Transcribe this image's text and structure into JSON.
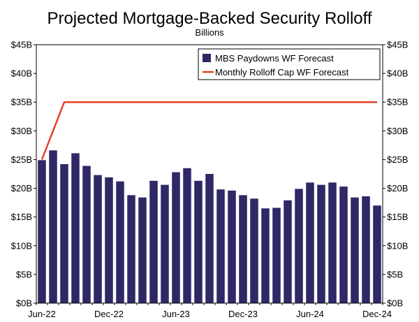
{
  "chart_data": {
    "type": "bar",
    "title": "Projected Mortgage-Backed Security Rolloff",
    "subtitle": "Billions",
    "xlabel": "",
    "ylabel": "",
    "ylim": [
      0,
      45
    ],
    "y_ticks": [
      "$0B",
      "$5B",
      "$10B",
      "$15B",
      "$20B",
      "$25B",
      "$30B",
      "$35B",
      "$40B",
      "$45B"
    ],
    "y_tick_values": [
      0,
      5,
      10,
      15,
      20,
      25,
      30,
      35,
      40,
      45
    ],
    "secondary_axis": "right, same scale",
    "grid": false,
    "legend_position": "top-right",
    "categories": [
      "Jun-22",
      "Jul-22",
      "Aug-22",
      "Sep-22",
      "Oct-22",
      "Nov-22",
      "Dec-22",
      "Jan-23",
      "Feb-23",
      "Mar-23",
      "Apr-23",
      "May-23",
      "Jun-23",
      "Jul-23",
      "Aug-23",
      "Sep-23",
      "Oct-23",
      "Nov-23",
      "Dec-23",
      "Jan-24",
      "Feb-24",
      "Mar-24",
      "Apr-24",
      "May-24",
      "Jun-24",
      "Jul-24",
      "Aug-24",
      "Sep-24",
      "Oct-24",
      "Nov-24",
      "Dec-24"
    ],
    "x_tick_labels": [
      {
        "index": 0,
        "label": "Jun-22"
      },
      {
        "index": 6,
        "label": "Dec-22"
      },
      {
        "index": 12,
        "label": "Jun-23"
      },
      {
        "index": 18,
        "label": "Dec-23"
      },
      {
        "index": 24,
        "label": "Jun-24"
      },
      {
        "index": 30,
        "label": "Dec-24"
      }
    ],
    "series": [
      {
        "name": "MBS Paydowns WF Forecast",
        "type": "bar",
        "color": "#2e2866",
        "values": [
          24.9,
          26.6,
          24.2,
          26.1,
          23.9,
          22.3,
          21.9,
          21.2,
          18.8,
          18.4,
          21.3,
          20.6,
          22.8,
          23.5,
          21.3,
          22.5,
          19.8,
          19.6,
          18.8,
          18.2,
          16.5,
          16.6,
          17.9,
          19.9,
          21.0,
          20.6,
          21.0,
          20.3,
          18.4,
          18.6,
          17.0
        ]
      },
      {
        "name": "Monthly Rolloff Cap WF Forecast",
        "type": "line",
        "color": "#e0442a",
        "values": [
          25,
          30,
          35,
          35,
          35,
          35,
          35,
          35,
          35,
          35,
          35,
          35,
          35,
          35,
          35,
          35,
          35,
          35,
          35,
          35,
          35,
          35,
          35,
          35,
          35,
          35,
          35,
          35,
          35,
          35,
          35
        ]
      }
    ]
  }
}
